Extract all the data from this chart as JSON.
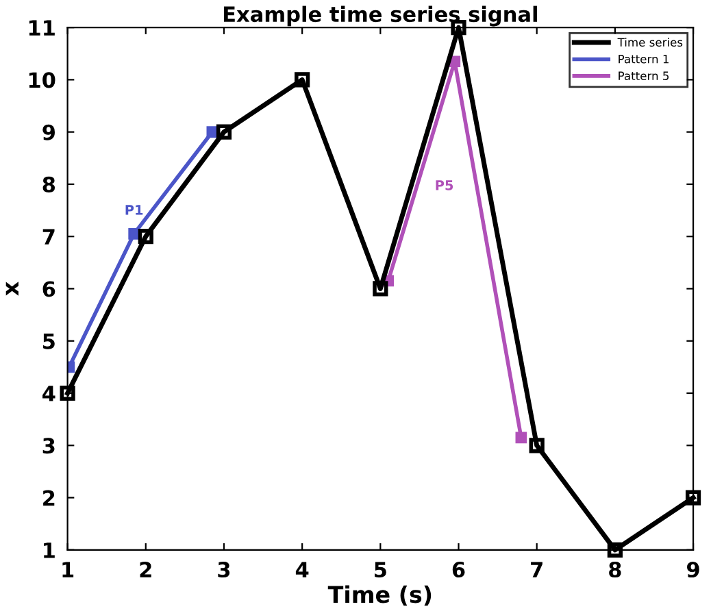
{
  "chart_data": {
    "type": "line",
    "title": "Example time series signal",
    "xlabel": "Time (s)",
    "ylabel": "x",
    "series": [
      {
        "name": "Time series",
        "color": "#000000",
        "x": [
          1,
          2,
          3,
          4,
          5,
          6,
          7,
          8,
          9
        ],
        "values": [
          4,
          7,
          9,
          10,
          6,
          11,
          3,
          1,
          2
        ]
      },
      {
        "name": "Pattern 1",
        "color": "#4b55c8",
        "x": [
          1.02,
          1.85,
          2.85
        ],
        "values": [
          4.5,
          7.05,
          9.0
        ]
      },
      {
        "name": "Pattern 5",
        "color": "#b050b8",
        "x": [
          5.1,
          5.95,
          6.8
        ],
        "values": [
          6.15,
          10.35,
          3.15
        ]
      }
    ],
    "annotations": [
      "P1",
      "P5"
    ],
    "xlim": [
      1,
      9
    ],
    "ylim": [
      1,
      11
    ],
    "xticks": [
      1,
      2,
      3,
      4,
      5,
      6,
      7,
      8,
      9
    ],
    "yticks": [
      1,
      2,
      3,
      4,
      5,
      6,
      7,
      8,
      9,
      10,
      11
    ],
    "marker": "square",
    "line_style": "solid",
    "legend": "top right",
    "grid": false
  }
}
